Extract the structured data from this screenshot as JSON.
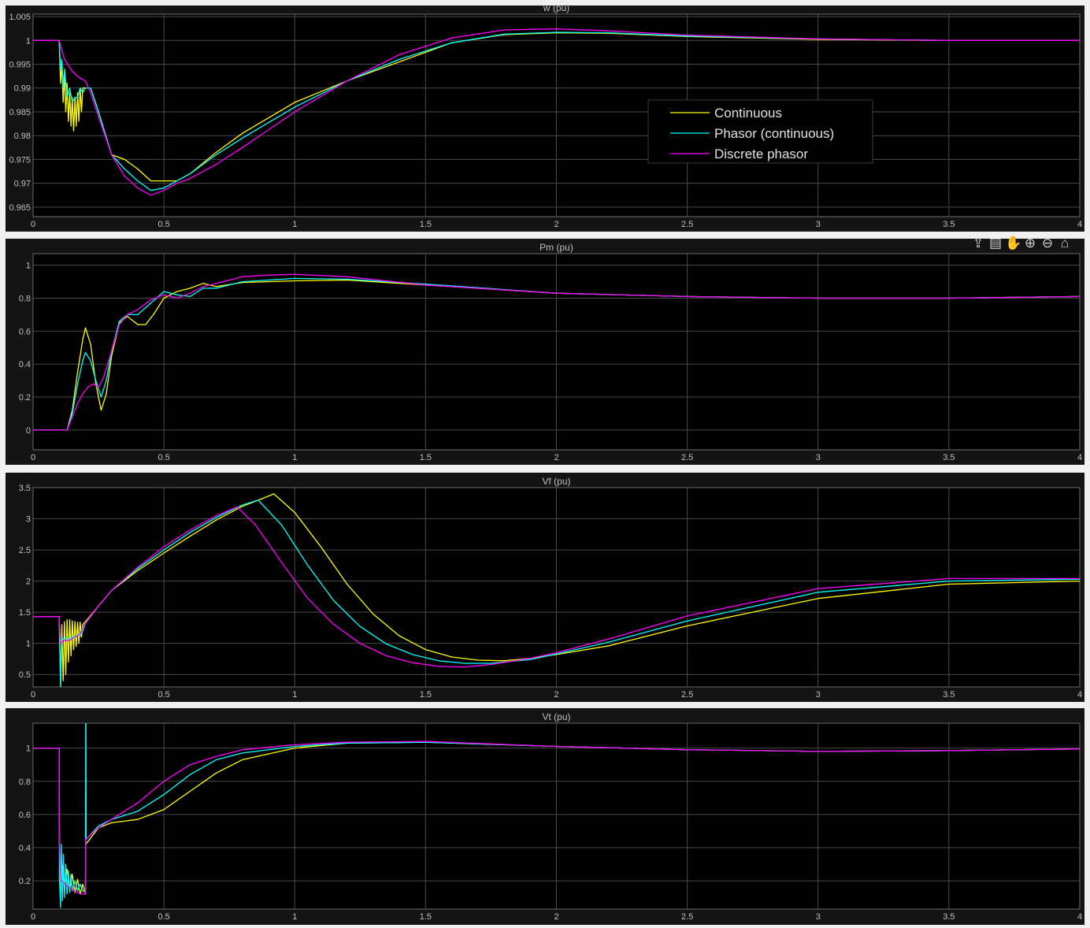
{
  "toolbar": {
    "icons": [
      "export-icon",
      "datatip-icon",
      "pan-hand-icon",
      "zoom-in-icon",
      "zoom-out-icon",
      "home-icon"
    ],
    "glyphs": [
      "⇪",
      "▤",
      "✋",
      "⊕",
      "⊖",
      "⌂"
    ]
  },
  "colors": {
    "figure_bg": "#f0f0f0",
    "axes_bg": "#000000",
    "grid": "#4a4a4a",
    "text": "#bfbfbf",
    "continuous": "#ffff00",
    "phasor": "#00ffff",
    "discrete": "#ff00ff"
  },
  "chart_data": [
    {
      "type": "line",
      "title": "w (pu)",
      "xlim": [
        0,
        4
      ],
      "ylim": [
        0.963,
        1.0055
      ],
      "xticks": [
        0,
        0.5,
        1,
        1.5,
        2,
        2.5,
        3,
        3.5,
        4
      ],
      "xtick_labels": [
        "0",
        "0.5",
        "1",
        "1.5",
        "2",
        "2.5",
        "3",
        "3.5",
        "4"
      ],
      "yticks": [
        0.965,
        0.97,
        0.975,
        0.98,
        0.985,
        0.99,
        0.995,
        1,
        1.005
      ],
      "ytick_labels": [
        "0.965",
        "0.97",
        "0.975",
        "0.98",
        "0.985",
        "0.99",
        "0.995",
        "1",
        "1.005"
      ],
      "grid": true,
      "legend": "top-right",
      "series": [
        {
          "name": "Continuous",
          "color": "#ffff00",
          "x": [
            0,
            0.1,
            0.105,
            0.11,
            0.115,
            0.12,
            0.125,
            0.13,
            0.135,
            0.14,
            0.145,
            0.15,
            0.155,
            0.16,
            0.165,
            0.17,
            0.175,
            0.18,
            0.185,
            0.19,
            0.2,
            0.22,
            0.25,
            0.3,
            0.35,
            0.4,
            0.45,
            0.5,
            0.55,
            0.6,
            0.7,
            0.8,
            1.0,
            1.2,
            1.4,
            1.6,
            1.8,
            2.0,
            2.2,
            2.5,
            3.0,
            3.5,
            4.0
          ],
          "y": [
            1,
            1,
            0.991,
            0.995,
            0.987,
            0.993,
            0.985,
            0.991,
            0.983,
            0.989,
            0.982,
            0.988,
            0.981,
            0.988,
            0.982,
            0.989,
            0.983,
            0.99,
            0.985,
            0.99,
            0.99,
            0.99,
            0.985,
            0.976,
            0.975,
            0.973,
            0.9705,
            0.9705,
            0.9705,
            0.972,
            0.9765,
            0.9805,
            0.987,
            0.9915,
            0.9955,
            0.9995,
            1.0012,
            1.0016,
            1.0015,
            1.0008,
            1.0002,
            1.0,
            1.0
          ]
        },
        {
          "name": "Phasor (continuous)",
          "color": "#00ffff",
          "x": [
            0,
            0.1,
            0.105,
            0.11,
            0.115,
            0.12,
            0.13,
            0.14,
            0.15,
            0.16,
            0.17,
            0.18,
            0.19,
            0.2,
            0.22,
            0.25,
            0.3,
            0.35,
            0.4,
            0.45,
            0.5,
            0.55,
            0.6,
            0.7,
            0.8,
            1.0,
            1.2,
            1.4,
            1.6,
            1.8,
            2.0,
            2.2,
            2.5,
            3.0,
            3.5,
            4.0
          ],
          "y": [
            1,
            1,
            0.994,
            0.996,
            0.99,
            0.994,
            0.988,
            0.99,
            0.987,
            0.988,
            0.988,
            0.99,
            0.989,
            0.99,
            0.99,
            0.985,
            0.976,
            0.973,
            0.9705,
            0.9685,
            0.969,
            0.9705,
            0.972,
            0.976,
            0.9795,
            0.986,
            0.9915,
            0.996,
            0.9995,
            1.0013,
            1.0017,
            1.0016,
            1.0009,
            1.0003,
            1.0,
            1.0
          ]
        },
        {
          "name": "Discrete phasor",
          "color": "#ff00ff",
          "x": [
            0,
            0.1,
            0.12,
            0.15,
            0.18,
            0.2,
            0.22,
            0.25,
            0.3,
            0.35,
            0.4,
            0.45,
            0.5,
            0.55,
            0.6,
            0.7,
            0.8,
            1.0,
            1.2,
            1.4,
            1.6,
            1.8,
            2.0,
            2.2,
            2.5,
            3.0,
            3.5,
            4.0
          ],
          "y": [
            1,
            1,
            0.996,
            0.9935,
            0.992,
            0.9915,
            0.989,
            0.984,
            0.976,
            0.9715,
            0.969,
            0.9675,
            0.9685,
            0.97,
            0.971,
            0.974,
            0.9775,
            0.985,
            0.9915,
            0.997,
            1.0005,
            1.0022,
            1.0024,
            1.002,
            1.0011,
            1.0003,
            1.0,
            1.0
          ]
        }
      ]
    },
    {
      "type": "line",
      "title": "Pm (pu)",
      "xlim": [
        0,
        4
      ],
      "ylim": [
        -0.12,
        1.07
      ],
      "xticks": [
        0,
        0.5,
        1,
        1.5,
        2,
        2.5,
        3,
        3.5,
        4
      ],
      "xtick_labels": [
        "0",
        "0.5",
        "1",
        "1.5",
        "2",
        "2.5",
        "3",
        "3.5",
        "4"
      ],
      "yticks": [
        0,
        0.2,
        0.4,
        0.6,
        0.8,
        1
      ],
      "ytick_labels": [
        "0",
        "0.2",
        "0.4",
        "0.6",
        "0.8",
        "1"
      ],
      "grid": true,
      "series": [
        {
          "name": "Continuous",
          "color": "#ffff00",
          "x": [
            0,
            0.13,
            0.15,
            0.17,
            0.19,
            0.2,
            0.22,
            0.24,
            0.26,
            0.28,
            0.3,
            0.33,
            0.36,
            0.4,
            0.43,
            0.46,
            0.5,
            0.55,
            0.6,
            0.65,
            0.7,
            0.8,
            1.0,
            1.2,
            1.5,
            2.0,
            2.5,
            3.0,
            3.5,
            4.0
          ],
          "y": [
            0,
            0,
            0.12,
            0.35,
            0.55,
            0.62,
            0.52,
            0.28,
            0.12,
            0.22,
            0.45,
            0.65,
            0.69,
            0.64,
            0.64,
            0.7,
            0.8,
            0.84,
            0.86,
            0.89,
            0.87,
            0.895,
            0.905,
            0.91,
            0.88,
            0.83,
            0.81,
            0.8,
            0.8,
            0.81
          ]
        },
        {
          "name": "Phasor (continuous)",
          "color": "#00ffff",
          "x": [
            0,
            0.13,
            0.15,
            0.17,
            0.19,
            0.2,
            0.22,
            0.24,
            0.26,
            0.28,
            0.3,
            0.33,
            0.36,
            0.4,
            0.45,
            0.5,
            0.55,
            0.6,
            0.65,
            0.7,
            0.8,
            1.0,
            1.2,
            1.5,
            2.0,
            2.5,
            3.0,
            3.5,
            4.0
          ],
          "y": [
            0,
            0,
            0.1,
            0.28,
            0.42,
            0.47,
            0.42,
            0.3,
            0.2,
            0.3,
            0.48,
            0.66,
            0.7,
            0.7,
            0.77,
            0.84,
            0.82,
            0.81,
            0.86,
            0.86,
            0.9,
            0.92,
            0.915,
            0.885,
            0.83,
            0.81,
            0.8,
            0.8,
            0.81
          ]
        },
        {
          "name": "Discrete phasor",
          "color": "#ff00ff",
          "x": [
            0,
            0.13,
            0.15,
            0.17,
            0.19,
            0.21,
            0.23,
            0.25,
            0.27,
            0.3,
            0.33,
            0.36,
            0.4,
            0.45,
            0.5,
            0.55,
            0.6,
            0.65,
            0.7,
            0.8,
            0.9,
            1.0,
            1.2,
            1.5,
            2.0,
            2.5,
            3.0,
            3.5,
            4.0
          ],
          "y": [
            0,
            0,
            0.08,
            0.16,
            0.22,
            0.26,
            0.28,
            0.26,
            0.32,
            0.48,
            0.64,
            0.7,
            0.73,
            0.79,
            0.82,
            0.8,
            0.83,
            0.87,
            0.89,
            0.93,
            0.94,
            0.945,
            0.93,
            0.88,
            0.83,
            0.81,
            0.8,
            0.8,
            0.81
          ]
        }
      ]
    },
    {
      "type": "line",
      "title": "Vf (pu)",
      "xlim": [
        0,
        4
      ],
      "ylim": [
        0.3,
        3.5
      ],
      "xticks": [
        0,
        0.5,
        1,
        1.5,
        2,
        2.5,
        3,
        3.5,
        4
      ],
      "xtick_labels": [
        "0",
        "0.5",
        "1",
        "1.5",
        "2",
        "2.5",
        "3",
        "3.5",
        "4"
      ],
      "yticks": [
        0.5,
        1,
        1.5,
        2,
        2.5,
        3,
        3.5
      ],
      "ytick_labels": [
        "0.5",
        "1",
        "1.5",
        "2",
        "2.5",
        "3",
        "3.5"
      ],
      "grid": true,
      "series": [
        {
          "name": "Continuous",
          "color": "#ffff00",
          "x": [
            0,
            0.1,
            0.105,
            0.11,
            0.115,
            0.12,
            0.125,
            0.13,
            0.135,
            0.14,
            0.145,
            0.15,
            0.155,
            0.16,
            0.165,
            0.17,
            0.175,
            0.18,
            0.185,
            0.19,
            0.2,
            0.25,
            0.3,
            0.4,
            0.5,
            0.6,
            0.7,
            0.8,
            0.88,
            0.92,
            1.0,
            1.1,
            1.2,
            1.3,
            1.4,
            1.5,
            1.6,
            1.7,
            1.8,
            1.9,
            2.0,
            2.2,
            2.5,
            3.0,
            3.5,
            4.0
          ],
          "y": [
            1.43,
            1.43,
            0.3,
            1.3,
            0.4,
            1.35,
            0.5,
            1.38,
            0.7,
            1.38,
            0.8,
            1.36,
            0.9,
            1.35,
            0.95,
            1.34,
            1.0,
            1.34,
            1.1,
            1.3,
            1.35,
            1.6,
            1.85,
            2.17,
            2.45,
            2.72,
            2.98,
            3.2,
            3.33,
            3.4,
            3.1,
            2.55,
            1.95,
            1.47,
            1.12,
            0.9,
            0.78,
            0.73,
            0.72,
            0.76,
            0.82,
            0.96,
            1.28,
            1.72,
            1.95,
            2.0
          ]
        },
        {
          "name": "Phasor (continuous)",
          "color": "#00ffff",
          "x": [
            0,
            0.1,
            0.105,
            0.11,
            0.12,
            0.13,
            0.14,
            0.15,
            0.16,
            0.17,
            0.18,
            0.19,
            0.2,
            0.25,
            0.3,
            0.4,
            0.5,
            0.6,
            0.7,
            0.8,
            0.86,
            0.95,
            1.05,
            1.15,
            1.25,
            1.35,
            1.45,
            1.55,
            1.65,
            1.75,
            1.9,
            2.0,
            2.2,
            2.5,
            3.0,
            3.5,
            4.0
          ],
          "y": [
            1.43,
            1.43,
            0.3,
            1.1,
            1.05,
            1.1,
            1.05,
            1.12,
            1.08,
            1.15,
            1.12,
            1.2,
            1.32,
            1.6,
            1.85,
            2.2,
            2.5,
            2.78,
            3.02,
            3.22,
            3.3,
            2.9,
            2.25,
            1.68,
            1.27,
            0.99,
            0.82,
            0.72,
            0.68,
            0.68,
            0.74,
            0.83,
            1.02,
            1.36,
            1.82,
            2.0,
            2.03
          ]
        },
        {
          "name": "Discrete phasor",
          "color": "#ff00ff",
          "x": [
            0,
            0.1,
            0.105,
            0.12,
            0.14,
            0.16,
            0.18,
            0.2,
            0.25,
            0.3,
            0.4,
            0.5,
            0.6,
            0.7,
            0.78,
            0.85,
            0.95,
            1.05,
            1.15,
            1.25,
            1.35,
            1.45,
            1.55,
            1.65,
            1.75,
            1.9,
            2.0,
            2.2,
            2.5,
            3.0,
            3.5,
            4.0
          ],
          "y": [
            1.43,
            1.43,
            1.0,
            1.05,
            1.05,
            1.1,
            1.15,
            1.33,
            1.6,
            1.85,
            2.22,
            2.55,
            2.82,
            3.05,
            3.19,
            2.9,
            2.3,
            1.72,
            1.3,
            1.0,
            0.8,
            0.69,
            0.63,
            0.62,
            0.66,
            0.76,
            0.85,
            1.07,
            1.44,
            1.88,
            2.04,
            2.04
          ]
        }
      ]
    },
    {
      "type": "line",
      "title": "Vt (pu)",
      "xlim": [
        0,
        4
      ],
      "ylim": [
        0.03,
        1.15
      ],
      "xticks": [
        0,
        0.5,
        1,
        1.5,
        2,
        2.5,
        3,
        3.5,
        4
      ],
      "xtick_labels": [
        "0",
        "0.5",
        "1",
        "1.5",
        "2",
        "2.5",
        "3",
        "3.5",
        "4"
      ],
      "yticks": [
        0.2,
        0.4,
        0.6,
        0.8,
        1
      ],
      "ytick_labels": [
        "0.2",
        "0.4",
        "0.6",
        "0.8",
        "1"
      ],
      "grid": true,
      "series": [
        {
          "name": "Continuous",
          "color": "#ffff00",
          "x": [
            0,
            0.1,
            0.101,
            0.11,
            0.12,
            0.13,
            0.14,
            0.15,
            0.16,
            0.17,
            0.18,
            0.19,
            0.2,
            0.201,
            0.25,
            0.3,
            0.4,
            0.5,
            0.6,
            0.7,
            0.8,
            1.0,
            1.2,
            1.5,
            2.0,
            2.5,
            3.0,
            3.5,
            4.0
          ],
          "y": [
            1,
            1,
            0.2,
            0.3,
            0.16,
            0.27,
            0.14,
            0.24,
            0.13,
            0.21,
            0.12,
            0.18,
            0.12,
            0.42,
            0.52,
            0.55,
            0.57,
            0.63,
            0.74,
            0.85,
            0.93,
            1.0,
            1.03,
            1.035,
            1.01,
            0.99,
            0.98,
            0.985,
            0.995
          ]
        },
        {
          "name": "Phasor (continuous)",
          "color": "#00ffff",
          "x": [
            0,
            0.1,
            0.101,
            0.105,
            0.108,
            0.112,
            0.116,
            0.12,
            0.125,
            0.13,
            0.135,
            0.14,
            0.145,
            0.15,
            0.16,
            0.17,
            0.18,
            0.19,
            0.2,
            0.201,
            0.202,
            0.203,
            0.25,
            0.3,
            0.4,
            0.5,
            0.6,
            0.7,
            0.8,
            1.0,
            1.2,
            1.5,
            2.0,
            2.5,
            3.0,
            3.5,
            4.0
          ],
          "y": [
            1,
            1,
            0.2,
            0.04,
            0.42,
            0.08,
            0.36,
            0.1,
            0.3,
            0.12,
            0.26,
            0.13,
            0.24,
            0.14,
            0.2,
            0.14,
            0.18,
            0.14,
            0.13,
            1.15,
            1.15,
            0.45,
            0.53,
            0.57,
            0.62,
            0.72,
            0.84,
            0.93,
            0.97,
            1.01,
            1.03,
            1.035,
            1.01,
            0.99,
            0.98,
            0.985,
            0.995
          ]
        },
        {
          "name": "Discrete phasor",
          "color": "#ff00ff",
          "x": [
            0,
            0.1,
            0.101,
            0.105,
            0.11,
            0.13,
            0.15,
            0.17,
            0.19,
            0.2,
            0.201,
            0.25,
            0.3,
            0.4,
            0.5,
            0.6,
            0.7,
            0.8,
            1.0,
            1.2,
            1.5,
            2.0,
            2.5,
            3.0,
            3.5,
            4.0
          ],
          "y": [
            1,
            1,
            0.45,
            0.22,
            0.2,
            0.17,
            0.15,
            0.13,
            0.12,
            0.12,
            0.45,
            0.52,
            0.57,
            0.67,
            0.8,
            0.9,
            0.95,
            0.99,
            1.02,
            1.035,
            1.04,
            1.01,
            0.99,
            0.98,
            0.985,
            0.995
          ]
        }
      ]
    }
  ]
}
